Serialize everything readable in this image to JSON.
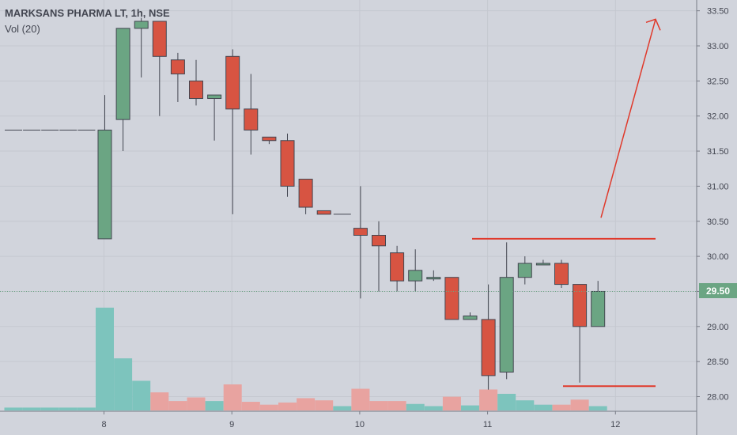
{
  "legend": {
    "title": "MARKSANS PHARMA LT, 1h, NSE",
    "volume": "Vol (20)"
  },
  "last_price_label": "29.50",
  "colors": {
    "up": "#6ba583",
    "down": "#d75442",
    "vol_up": "#7dc4bd",
    "vol_down": "#e8a3a0",
    "drawing": "#e0392b",
    "background": "#d1d4dc"
  },
  "chart_data": {
    "type": "candlestick",
    "ylim": [
      27.85,
      33.6
    ],
    "y_ticks": [
      "28.00",
      "28.50",
      "29.00",
      "29.50",
      "30.00",
      "30.50",
      "31.00",
      "31.50",
      "32.00",
      "32.50",
      "33.00",
      "33.50"
    ],
    "x_ticks": [
      "8",
      "9",
      "10",
      "11",
      "12"
    ],
    "candles": [
      {
        "o": 31.8,
        "h": 31.8,
        "l": 31.8,
        "c": 31.8
      },
      {
        "o": 31.8,
        "h": 31.8,
        "l": 31.8,
        "c": 31.8
      },
      {
        "o": 31.8,
        "h": 31.8,
        "l": 31.8,
        "c": 31.8
      },
      {
        "o": 31.8,
        "h": 31.8,
        "l": 31.8,
        "c": 31.8
      },
      {
        "o": 31.8,
        "h": 31.8,
        "l": 31.8,
        "c": 31.8
      },
      {
        "o": 30.25,
        "h": 32.3,
        "l": 30.25,
        "c": 31.8
      },
      {
        "o": 31.95,
        "h": 33.25,
        "l": 31.5,
        "c": 33.25
      },
      {
        "o": 33.25,
        "h": 33.4,
        "l": 32.55,
        "c": 33.35
      },
      {
        "o": 33.35,
        "h": 33.35,
        "l": 32.0,
        "c": 32.85
      },
      {
        "o": 32.8,
        "h": 32.9,
        "l": 32.2,
        "c": 32.6
      },
      {
        "o": 32.5,
        "h": 32.8,
        "l": 32.15,
        "c": 32.25
      },
      {
        "o": 32.25,
        "h": 32.3,
        "l": 31.65,
        "c": 32.3
      },
      {
        "o": 32.85,
        "h": 32.95,
        "l": 30.6,
        "c": 32.1
      },
      {
        "o": 32.1,
        "h": 32.6,
        "l": 31.45,
        "c": 31.8
      },
      {
        "o": 31.7,
        "h": 31.7,
        "l": 31.6,
        "c": 31.65
      },
      {
        "o": 31.65,
        "h": 31.75,
        "l": 30.85,
        "c": 31.0
      },
      {
        "o": 31.1,
        "h": 31.1,
        "l": 30.6,
        "c": 30.7
      },
      {
        "o": 30.65,
        "h": 30.65,
        "l": 30.6,
        "c": 30.6
      },
      {
        "o": 30.6,
        "h": 30.6,
        "l": 30.6,
        "c": 30.6
      },
      {
        "o": 30.4,
        "h": 31.0,
        "l": 29.4,
        "c": 30.3
      },
      {
        "o": 30.3,
        "h": 30.5,
        "l": 29.5,
        "c": 30.15
      },
      {
        "o": 30.05,
        "h": 30.15,
        "l": 29.5,
        "c": 29.65
      },
      {
        "o": 29.65,
        "h": 30.1,
        "l": 29.5,
        "c": 29.8
      },
      {
        "o": 29.7,
        "h": 29.8,
        "l": 29.65,
        "c": 29.7
      },
      {
        "o": 29.7,
        "h": 29.7,
        "l": 29.1,
        "c": 29.1
      },
      {
        "o": 29.1,
        "h": 29.2,
        "l": 29.1,
        "c": 29.15
      },
      {
        "o": 29.1,
        "h": 29.6,
        "l": 28.1,
        "c": 28.3
      },
      {
        "o": 28.35,
        "h": 30.2,
        "l": 28.25,
        "c": 29.7
      },
      {
        "o": 29.7,
        "h": 30.0,
        "l": 29.6,
        "c": 29.9
      },
      {
        "o": 29.9,
        "h": 29.95,
        "l": 29.9,
        "c": 29.9
      },
      {
        "o": 29.9,
        "h": 29.95,
        "l": 29.55,
        "c": 29.6
      },
      {
        "o": 29.6,
        "h": 29.6,
        "l": 28.2,
        "c": 29.0
      },
      {
        "o": 29.0,
        "h": 29.65,
        "l": 29.0,
        "c": 29.5
      }
    ],
    "volume": [
      0.4,
      0.4,
      0.4,
      0.4,
      0.4,
      14.2,
      7.2,
      4.1,
      2.5,
      1.3,
      1.8,
      1.3,
      3.6,
      1.2,
      0.8,
      1.1,
      1.7,
      1.4,
      0.6,
      3.0,
      1.3,
      1.3,
      0.9,
      0.6,
      1.9,
      0.7,
      2.9,
      2.3,
      1.4,
      0.8,
      0.8,
      1.5,
      0.6
    ],
    "vol_max": 14.2
  }
}
